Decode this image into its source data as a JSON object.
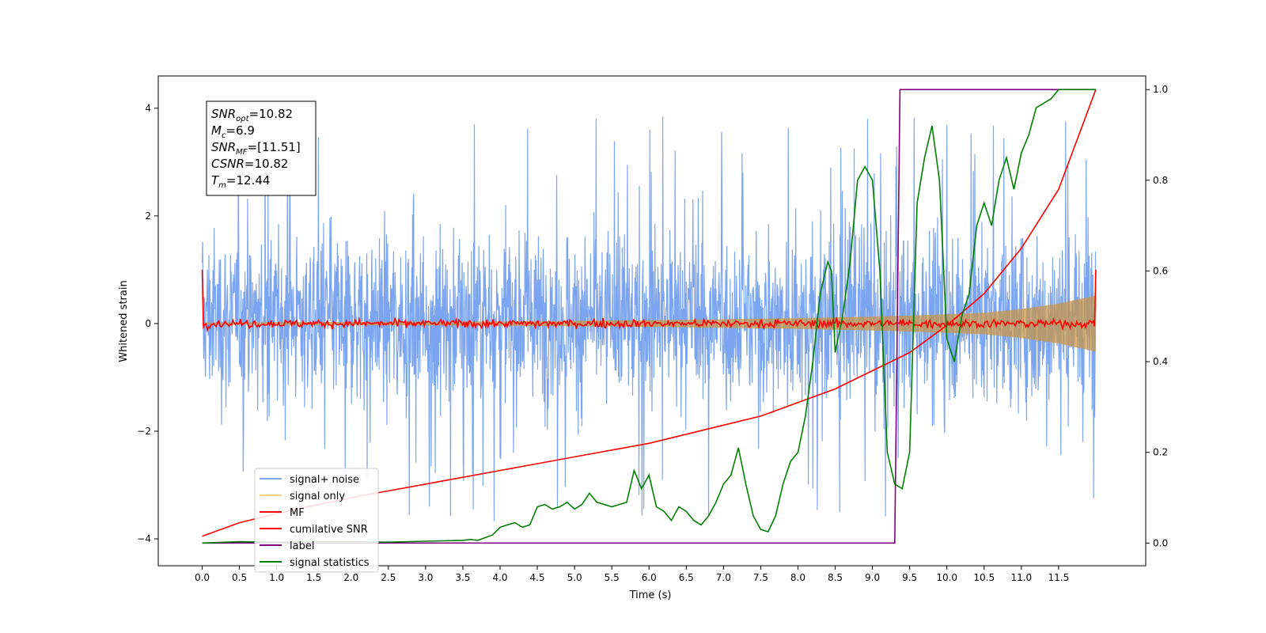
{
  "chart_data": {
    "type": "line",
    "title": "",
    "xlabel": "Time (s)",
    "ylabel": "Whitened strain",
    "xlim": [
      -0.59,
      12.67
    ],
    "ylim": [
      -4.5,
      4.6
    ],
    "y2lim": [
      -0.05,
      1.03
    ],
    "xticks": [
      "0.0",
      "0.5",
      "1.0",
      "1.5",
      "2.0",
      "2.5",
      "3.0",
      "3.5",
      "4.0",
      "4.5",
      "5.0",
      "5.5",
      "6.0",
      "6.5",
      "7.0",
      "7.5",
      "8.0",
      "8.5",
      "9.0",
      "9.5",
      "10.0",
      "10.5",
      "11.0",
      "11.5"
    ],
    "yticks": [
      "4",
      "2",
      "0",
      "−2",
      "−4"
    ],
    "y2ticks": [
      "1.0",
      "0.8",
      "0.6",
      "0.4",
      "0.2",
      "0.0"
    ],
    "grid": false,
    "legend_position": "lower-left",
    "legend": [
      {
        "label": "signal+ noise",
        "color": "#6495ED",
        "alpha": 0.85
      },
      {
        "label": "signal only",
        "color": "#FFA500",
        "alpha": 0.5
      },
      {
        "label": "MF",
        "color": "#FF0000",
        "alpha": 1
      },
      {
        "label": "cumilative SNR",
        "color": "#FF0000",
        "alpha": 1
      },
      {
        "label": "label",
        "color": "#800080",
        "alpha": 1
      },
      {
        "label": "signal statistics",
        "color": "#008000",
        "alpha": 1
      }
    ],
    "annotation": [
      {
        "base": "SNR",
        "sub": "opt",
        "value": "=10.82"
      },
      {
        "base": "M",
        "sub": "c",
        "value": "=6.9"
      },
      {
        "base": "SNR",
        "sub": "MF",
        "value": "=[11.51]"
      },
      {
        "base": "CSNR",
        "sub": "",
        "value": "=10.82"
      },
      {
        "base": "T",
        "sub": "m",
        "value": "=12.44"
      }
    ],
    "series": [
      {
        "name": "signal+ noise",
        "axis": "left",
        "kind": "noise_band",
        "x_range": [
          0.0,
          12.0
        ],
        "typical_range": [
          -1.9,
          2.1
        ],
        "spike_range": [
          -4.0,
          4.0
        ]
      },
      {
        "name": "signal only",
        "axis": "left",
        "kind": "envelope",
        "x": [
          0.0,
          2,
          4,
          6,
          7,
          8,
          9,
          9.5,
          10,
          10.5,
          11,
          11.5,
          12.0
        ],
        "amplitude": [
          0.02,
          0.03,
          0.04,
          0.06,
          0.08,
          0.1,
          0.13,
          0.15,
          0.17,
          0.2,
          0.27,
          0.37,
          0.52
        ]
      },
      {
        "name": "MF",
        "axis": "left",
        "kind": "noisy_flat",
        "x_range": [
          0.0,
          12.0
        ],
        "center": 0.0,
        "amplitude": 0.12,
        "endpoints": [
          1.0,
          1.0
        ]
      },
      {
        "name": "cumilative SNR",
        "axis": "right",
        "x": [
          0.0,
          0.5,
          1,
          1.5,
          2,
          2.5,
          3,
          3.5,
          4,
          4.5,
          5,
          5.5,
          6,
          6.5,
          7,
          7.5,
          8,
          8.5,
          9,
          9.5,
          10,
          10.5,
          11,
          11.5,
          12.0
        ],
        "y": [
          0.015,
          0.045,
          0.065,
          0.083,
          0.1,
          0.115,
          0.13,
          0.145,
          0.16,
          0.175,
          0.19,
          0.205,
          0.22,
          0.24,
          0.26,
          0.28,
          0.31,
          0.34,
          0.38,
          0.42,
          0.48,
          0.55,
          0.65,
          0.78,
          1.0
        ]
      },
      {
        "name": "label",
        "axis": "right",
        "x": [
          0.0,
          9.3,
          9.3,
          9.37,
          12.0
        ],
        "y": [
          0.0,
          0.0,
          0.0,
          1.0,
          1.0
        ]
      },
      {
        "name": "signal statistics",
        "axis": "right",
        "x": [
          0.0,
          0.5,
          1.0,
          1.5,
          2.0,
          2.5,
          3.0,
          3.5,
          3.6,
          3.7,
          3.8,
          3.9,
          4.0,
          4.1,
          4.2,
          4.3,
          4.4,
          4.5,
          4.6,
          4.7,
          4.8,
          4.9,
          5.0,
          5.1,
          5.2,
          5.3,
          5.4,
          5.5,
          5.6,
          5.7,
          5.8,
          5.9,
          6.0,
          6.1,
          6.2,
          6.3,
          6.4,
          6.5,
          6.6,
          6.7,
          6.8,
          6.9,
          7.0,
          7.1,
          7.2,
          7.3,
          7.4,
          7.5,
          7.6,
          7.7,
          7.8,
          7.9,
          8.0,
          8.1,
          8.2,
          8.3,
          8.4,
          8.45,
          8.5,
          8.6,
          8.7,
          8.8,
          8.9,
          9.0,
          9.1,
          9.2,
          9.3,
          9.4,
          9.5,
          9.6,
          9.7,
          9.8,
          9.9,
          10.0,
          10.1,
          10.2,
          10.3,
          10.4,
          10.5,
          10.6,
          10.7,
          10.8,
          10.9,
          11.0,
          11.1,
          11.2,
          11.3,
          11.4,
          11.5,
          11.6,
          11.7,
          11.8,
          11.9,
          12.0
        ],
        "y": [
          0.0,
          0.003,
          0.002,
          0.003,
          0.003,
          0.002,
          0.004,
          0.006,
          0.008,
          0.006,
          0.012,
          0.018,
          0.035,
          0.04,
          0.045,
          0.035,
          0.04,
          0.08,
          0.085,
          0.075,
          0.08,
          0.09,
          0.075,
          0.085,
          0.11,
          0.09,
          0.085,
          0.08,
          0.085,
          0.09,
          0.16,
          0.12,
          0.15,
          0.08,
          0.07,
          0.05,
          0.08,
          0.07,
          0.05,
          0.04,
          0.06,
          0.09,
          0.13,
          0.15,
          0.21,
          0.13,
          0.06,
          0.03,
          0.025,
          0.06,
          0.13,
          0.18,
          0.2,
          0.28,
          0.4,
          0.55,
          0.62,
          0.6,
          0.42,
          0.5,
          0.62,
          0.8,
          0.83,
          0.8,
          0.6,
          0.2,
          0.13,
          0.12,
          0.2,
          0.75,
          0.85,
          0.92,
          0.8,
          0.45,
          0.4,
          0.5,
          0.55,
          0.7,
          0.75,
          0.7,
          0.8,
          0.85,
          0.78,
          0.86,
          0.9,
          0.96,
          0.97,
          0.98,
          1.0,
          1.0,
          1.0,
          1.0,
          1.0,
          1.0
        ]
      }
    ]
  }
}
